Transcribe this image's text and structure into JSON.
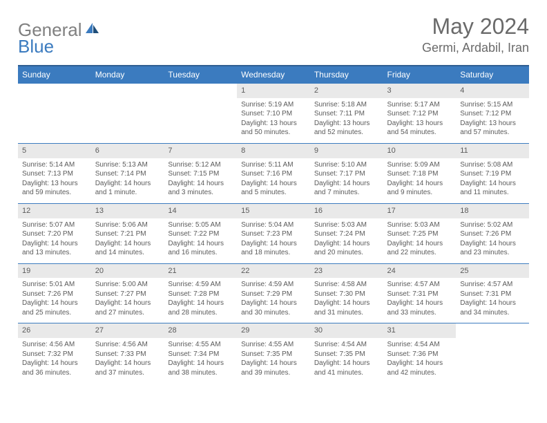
{
  "logo": {
    "part1": "General",
    "part2": "Blue"
  },
  "title": "May 2024",
  "location": "Germi, Ardabil, Iran",
  "colors": {
    "header_bg": "#3b7bbf",
    "header_border": "#2f5e91",
    "daynum_bg": "#e9e9e9",
    "row_divider": "#3b7bbf",
    "text": "#5a5a5a",
    "logo_gray": "#808080",
    "logo_blue": "#3b7bbf"
  },
  "weekdays": [
    "Sunday",
    "Monday",
    "Tuesday",
    "Wednesday",
    "Thursday",
    "Friday",
    "Saturday"
  ],
  "weeks": [
    {
      "days": [
        null,
        null,
        null,
        {
          "n": "1",
          "sr": "Sunrise: 5:19 AM",
          "ss": "Sunset: 7:10 PM",
          "dl": "Daylight: 13 hours and 50 minutes."
        },
        {
          "n": "2",
          "sr": "Sunrise: 5:18 AM",
          "ss": "Sunset: 7:11 PM",
          "dl": "Daylight: 13 hours and 52 minutes."
        },
        {
          "n": "3",
          "sr": "Sunrise: 5:17 AM",
          "ss": "Sunset: 7:12 PM",
          "dl": "Daylight: 13 hours and 54 minutes."
        },
        {
          "n": "4",
          "sr": "Sunrise: 5:15 AM",
          "ss": "Sunset: 7:12 PM",
          "dl": "Daylight: 13 hours and 57 minutes."
        }
      ]
    },
    {
      "days": [
        {
          "n": "5",
          "sr": "Sunrise: 5:14 AM",
          "ss": "Sunset: 7:13 PM",
          "dl": "Daylight: 13 hours and 59 minutes."
        },
        {
          "n": "6",
          "sr": "Sunrise: 5:13 AM",
          "ss": "Sunset: 7:14 PM",
          "dl": "Daylight: 14 hours and 1 minute."
        },
        {
          "n": "7",
          "sr": "Sunrise: 5:12 AM",
          "ss": "Sunset: 7:15 PM",
          "dl": "Daylight: 14 hours and 3 minutes."
        },
        {
          "n": "8",
          "sr": "Sunrise: 5:11 AM",
          "ss": "Sunset: 7:16 PM",
          "dl": "Daylight: 14 hours and 5 minutes."
        },
        {
          "n": "9",
          "sr": "Sunrise: 5:10 AM",
          "ss": "Sunset: 7:17 PM",
          "dl": "Daylight: 14 hours and 7 minutes."
        },
        {
          "n": "10",
          "sr": "Sunrise: 5:09 AM",
          "ss": "Sunset: 7:18 PM",
          "dl": "Daylight: 14 hours and 9 minutes."
        },
        {
          "n": "11",
          "sr": "Sunrise: 5:08 AM",
          "ss": "Sunset: 7:19 PM",
          "dl": "Daylight: 14 hours and 11 minutes."
        }
      ]
    },
    {
      "days": [
        {
          "n": "12",
          "sr": "Sunrise: 5:07 AM",
          "ss": "Sunset: 7:20 PM",
          "dl": "Daylight: 14 hours and 13 minutes."
        },
        {
          "n": "13",
          "sr": "Sunrise: 5:06 AM",
          "ss": "Sunset: 7:21 PM",
          "dl": "Daylight: 14 hours and 14 minutes."
        },
        {
          "n": "14",
          "sr": "Sunrise: 5:05 AM",
          "ss": "Sunset: 7:22 PM",
          "dl": "Daylight: 14 hours and 16 minutes."
        },
        {
          "n": "15",
          "sr": "Sunrise: 5:04 AM",
          "ss": "Sunset: 7:23 PM",
          "dl": "Daylight: 14 hours and 18 minutes."
        },
        {
          "n": "16",
          "sr": "Sunrise: 5:03 AM",
          "ss": "Sunset: 7:24 PM",
          "dl": "Daylight: 14 hours and 20 minutes."
        },
        {
          "n": "17",
          "sr": "Sunrise: 5:03 AM",
          "ss": "Sunset: 7:25 PM",
          "dl": "Daylight: 14 hours and 22 minutes."
        },
        {
          "n": "18",
          "sr": "Sunrise: 5:02 AM",
          "ss": "Sunset: 7:26 PM",
          "dl": "Daylight: 14 hours and 23 minutes."
        }
      ]
    },
    {
      "days": [
        {
          "n": "19",
          "sr": "Sunrise: 5:01 AM",
          "ss": "Sunset: 7:26 PM",
          "dl": "Daylight: 14 hours and 25 minutes."
        },
        {
          "n": "20",
          "sr": "Sunrise: 5:00 AM",
          "ss": "Sunset: 7:27 PM",
          "dl": "Daylight: 14 hours and 27 minutes."
        },
        {
          "n": "21",
          "sr": "Sunrise: 4:59 AM",
          "ss": "Sunset: 7:28 PM",
          "dl": "Daylight: 14 hours and 28 minutes."
        },
        {
          "n": "22",
          "sr": "Sunrise: 4:59 AM",
          "ss": "Sunset: 7:29 PM",
          "dl": "Daylight: 14 hours and 30 minutes."
        },
        {
          "n": "23",
          "sr": "Sunrise: 4:58 AM",
          "ss": "Sunset: 7:30 PM",
          "dl": "Daylight: 14 hours and 31 minutes."
        },
        {
          "n": "24",
          "sr": "Sunrise: 4:57 AM",
          "ss": "Sunset: 7:31 PM",
          "dl": "Daylight: 14 hours and 33 minutes."
        },
        {
          "n": "25",
          "sr": "Sunrise: 4:57 AM",
          "ss": "Sunset: 7:31 PM",
          "dl": "Daylight: 14 hours and 34 minutes."
        }
      ]
    },
    {
      "days": [
        {
          "n": "26",
          "sr": "Sunrise: 4:56 AM",
          "ss": "Sunset: 7:32 PM",
          "dl": "Daylight: 14 hours and 36 minutes."
        },
        {
          "n": "27",
          "sr": "Sunrise: 4:56 AM",
          "ss": "Sunset: 7:33 PM",
          "dl": "Daylight: 14 hours and 37 minutes."
        },
        {
          "n": "28",
          "sr": "Sunrise: 4:55 AM",
          "ss": "Sunset: 7:34 PM",
          "dl": "Daylight: 14 hours and 38 minutes."
        },
        {
          "n": "29",
          "sr": "Sunrise: 4:55 AM",
          "ss": "Sunset: 7:35 PM",
          "dl": "Daylight: 14 hours and 39 minutes."
        },
        {
          "n": "30",
          "sr": "Sunrise: 4:54 AM",
          "ss": "Sunset: 7:35 PM",
          "dl": "Daylight: 14 hours and 41 minutes."
        },
        {
          "n": "31",
          "sr": "Sunrise: 4:54 AM",
          "ss": "Sunset: 7:36 PM",
          "dl": "Daylight: 14 hours and 42 minutes."
        },
        null
      ]
    }
  ]
}
